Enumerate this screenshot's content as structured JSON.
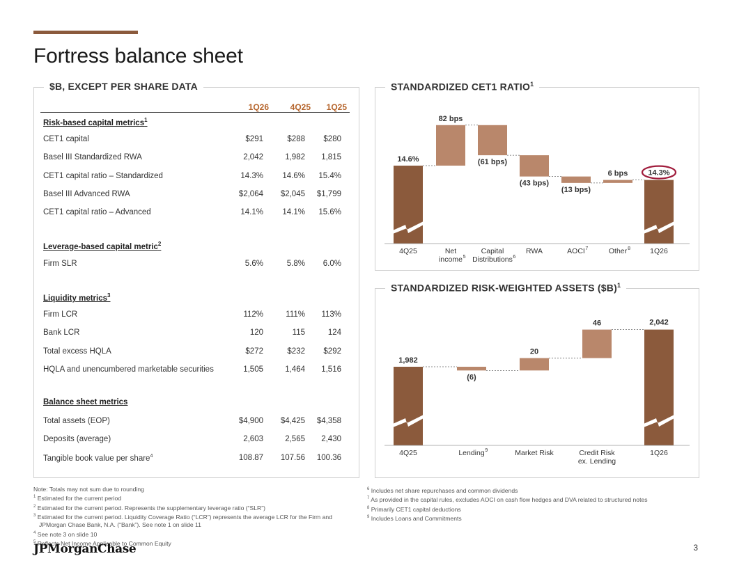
{
  "page": {
    "title": "Fortress balance sheet",
    "number": "3",
    "logo": "JPMorganChase"
  },
  "colors": {
    "accent": "#8B5A3C",
    "bar_dark": "#8B5A3C",
    "bar_light": "#B9876B",
    "header_orange": "#B5642B",
    "highlight_ring": "#A01C3C"
  },
  "table_panel": {
    "title": "$B, EXCEPT PER SHARE DATA",
    "columns": [
      "1Q26",
      "4Q25",
      "1Q25"
    ],
    "sections": [
      {
        "title": "Risk-based capital metrics",
        "sup": "1",
        "rows": [
          {
            "label": "CET1 capital",
            "sup": "",
            "values": [
              "$291",
              "$288",
              "$280"
            ]
          },
          {
            "label": "Basel III Standardized RWA",
            "sup": "",
            "values": [
              "2,042",
              "1,982",
              "1,815"
            ]
          },
          {
            "label": "CET1 capital ratio – Standardized",
            "sup": "",
            "values": [
              "14.3%",
              "14.6%",
              "15.4%"
            ]
          },
          {
            "label": "Basel III Advanced RWA",
            "sup": "",
            "values": [
              "$2,064",
              "$2,045",
              "$1,799"
            ]
          },
          {
            "label": "CET1 capital ratio – Advanced",
            "sup": "",
            "values": [
              "14.1%",
              "14.1%",
              "15.6%"
            ]
          }
        ]
      },
      {
        "title": "Leverage-based capital metric",
        "sup": "2",
        "rows": [
          {
            "label": "Firm SLR",
            "sup": "",
            "values": [
              "5.6%",
              "5.8%",
              "6.0%"
            ]
          }
        ]
      },
      {
        "title": "Liquidity metrics",
        "sup": "3",
        "rows": [
          {
            "label": "Firm LCR",
            "sup": "",
            "values": [
              "112%",
              "111%",
              "113%"
            ]
          },
          {
            "label": "Bank LCR",
            "sup": "",
            "values": [
              "120",
              "115",
              "124"
            ]
          },
          {
            "label": "Total excess HQLA",
            "sup": "",
            "values": [
              "$272",
              "$232",
              "$292"
            ]
          },
          {
            "label": "HQLA and unencumbered marketable securities",
            "sup": "",
            "values": [
              "1,505",
              "1,464",
              "1,516"
            ]
          }
        ]
      },
      {
        "title": "Balance sheet metrics",
        "sup": "",
        "rows": [
          {
            "label": "Total assets (EOP)",
            "sup": "",
            "values": [
              "$4,900",
              "$4,425",
              "$4,358"
            ]
          },
          {
            "label": "Deposits (average)",
            "sup": "",
            "values": [
              "2,603",
              "2,565",
              "2,430"
            ]
          },
          {
            "label": "Tangible book value per share",
            "sup": "4",
            "values": [
              "108.87",
              "107.56",
              "100.36"
            ]
          }
        ]
      }
    ]
  },
  "chart_data": [
    {
      "type": "bar",
      "subtype": "waterfall",
      "title": "STANDARDIZED CET1 RATIO",
      "title_sup": "1",
      "unit": "bps",
      "start": {
        "category": "4Q25",
        "value": 14.6,
        "label": "14.6%"
      },
      "steps": [
        {
          "category": "Net income",
          "category_lines": [
            "Net",
            "income"
          ],
          "sup": "5",
          "delta_bps": 82,
          "label": "82 bps"
        },
        {
          "category": "Capital Distributions",
          "category_lines": [
            "Capital",
            "Distributions"
          ],
          "sup": "6",
          "delta_bps": -61,
          "label": "(61 bps)"
        },
        {
          "category": "RWA",
          "category_lines": [
            "RWA"
          ],
          "sup": "",
          "delta_bps": -43,
          "label": "(43 bps)"
        },
        {
          "category": "AOCI",
          "category_lines": [
            "AOCI"
          ],
          "sup": "7",
          "delta_bps": -13,
          "label": "(13 bps)"
        },
        {
          "category": "Other",
          "category_lines": [
            "Other"
          ],
          "sup": "8",
          "delta_bps": 6,
          "label": "6 bps"
        }
      ],
      "end": {
        "category": "1Q26",
        "value": 14.3,
        "label": "14.3%",
        "highlighted": true
      },
      "axis_break": true
    },
    {
      "type": "bar",
      "subtype": "waterfall",
      "title": "STANDARDIZED RISK-WEIGHTED ASSETS ($B)",
      "title_sup": "1",
      "unit": "$B",
      "start": {
        "category": "4Q25",
        "value": 1982,
        "label": "1,982"
      },
      "steps": [
        {
          "category": "Lending",
          "category_lines": [
            "Lending"
          ],
          "sup": "9",
          "delta": -6,
          "label": "(6)"
        },
        {
          "category": "Market Risk",
          "category_lines": [
            "Market Risk"
          ],
          "sup": "",
          "delta": 20,
          "label": "20"
        },
        {
          "category": "Credit Risk ex. Lending",
          "category_lines": [
            "Credit Risk",
            "ex. Lending"
          ],
          "sup": "",
          "delta": 46,
          "label": "46"
        }
      ],
      "end": {
        "category": "1Q26",
        "value": 2042,
        "label": "2,042",
        "highlighted": false
      },
      "axis_break": true
    }
  ],
  "footnotes_left": [
    {
      "mark": "",
      "text": "Note: Totals may not sum due to rounding"
    },
    {
      "mark": "1",
      "text": "Estimated for the current period"
    },
    {
      "mark": "2",
      "text": "Estimated for the current period. Represents the supplementary leverage ratio (“SLR”)"
    },
    {
      "mark": "3",
      "text": "Estimated for the current period. Liquidity Coverage Ratio (“LCR”) represents the average LCR for the Firm and"
    },
    {
      "mark": "",
      "text": "JPMorgan Chase Bank, N.A. (“Bank”). See note 1 on slide 11"
    },
    {
      "mark": "4",
      "text": "See note 3 on slide 10"
    },
    {
      "mark": "5",
      "text": "Reflects Net Income Applicable to Common Equity"
    }
  ],
  "footnotes_right": [
    {
      "mark": "6",
      "text": "Includes net share repurchases and common dividends"
    },
    {
      "mark": "7",
      "text": "As provided in the capital rules, excludes AOCI on cash flow hedges and DVA related to structured notes"
    },
    {
      "mark": "8",
      "text": "Primarily CET1 capital deductions"
    },
    {
      "mark": "9",
      "text": "Includes Loans and Commitments"
    }
  ]
}
